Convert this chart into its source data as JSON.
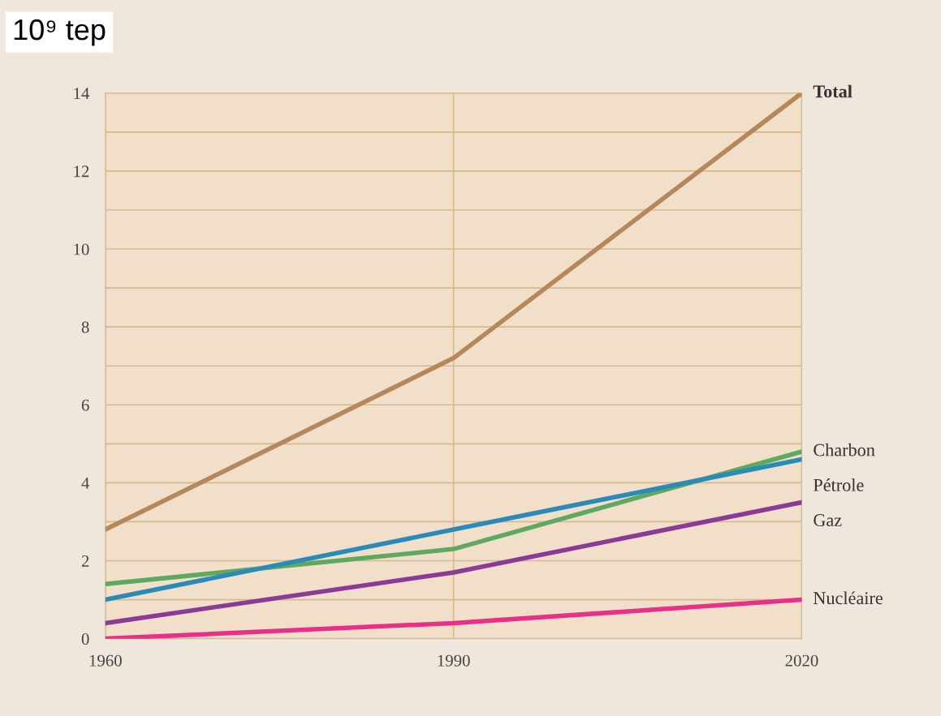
{
  "chart_data": {
    "type": "line",
    "ylabel": "10⁹ tep",
    "x": [
      1960,
      1990,
      2020
    ],
    "xlim": [
      1960,
      2020
    ],
    "xticks": [
      1960,
      1990,
      2020
    ],
    "ylim": [
      0,
      14
    ],
    "yticks": [
      0,
      {
        "value": 1,
        "label": null
      },
      2,
      {
        "value": 3,
        "label": null
      },
      4,
      {
        "value": 5,
        "label": null
      },
      6,
      {
        "value": 7,
        "label": null
      },
      8,
      {
        "value": 9,
        "label": null
      },
      10,
      {
        "value": 11,
        "label": null
      },
      12,
      {
        "value": 13,
        "label": null
      },
      14
    ],
    "grid": true,
    "legend": false,
    "marker": "none",
    "line_style": "solid",
    "series": [
      {
        "name": "Total",
        "color": "#b5875a",
        "values": [
          2.8,
          7.2,
          14
        ]
      },
      {
        "name": "Charbon",
        "color": "#5fa860",
        "values": [
          1.4,
          2.3,
          4.8
        ]
      },
      {
        "name": "Pétrole",
        "color": "#2a8ab8",
        "values": [
          1.0,
          2.8,
          4.6
        ]
      },
      {
        "name": "Gaz",
        "color": "#8b3a96",
        "values": [
          0.4,
          1.7,
          3.5
        ]
      },
      {
        "name": "Nucléaire",
        "color": "#e8308a",
        "values": [
          0,
          0.4,
          1.0
        ]
      }
    ]
  }
}
